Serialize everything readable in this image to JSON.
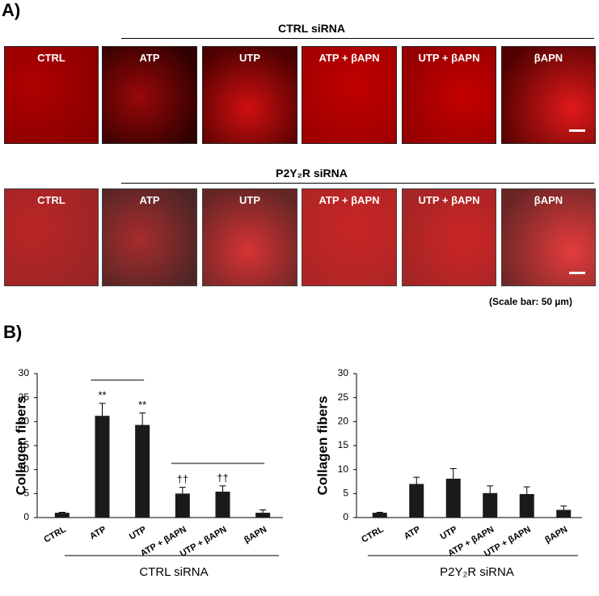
{
  "panel_a": {
    "label": "A)",
    "groups": [
      {
        "title": "CTRL siRNA",
        "images": [
          "CTRL",
          "ATP",
          "UTP",
          "ATP + βAPN",
          "UTP + βAPN",
          "βAPN"
        ]
      },
      {
        "title": "P2Y₂R siRNA",
        "images": [
          "CTRL",
          "ATP",
          "UTP",
          "ATP + βAPN",
          "UTP + βAPN",
          "βAPN"
        ]
      }
    ],
    "scale_note": "(Scale bar: 50 µm)"
  },
  "panel_b": {
    "label": "B)"
  },
  "chart_data": [
    {
      "type": "bar",
      "ylabel": "Collagen fibers",
      "xlabel": "CTRL siRNA",
      "categories": [
        "CTRL",
        "ATP",
        "UTP",
        "ATP + βAPN",
        "UTP + βAPN",
        "βAPN"
      ],
      "values": [
        1,
        21.2,
        19.3,
        5,
        5.4,
        1
      ],
      "errors": [
        0.1,
        2.6,
        2.5,
        1.3,
        1.2,
        0.6
      ],
      "annotations": [
        null,
        "**",
        "**",
        "††",
        "††",
        null
      ],
      "color": "#1a1a1a",
      "ylim": [
        0,
        30
      ],
      "yticks": [
        0,
        5,
        10,
        15,
        20,
        25,
        30
      ]
    },
    {
      "type": "bar",
      "ylabel": "Collagen fibers",
      "xlabel": "P2Y₂R siRNA",
      "categories": [
        "CTRL",
        "ATP",
        "UTP",
        "ATP + βAPN",
        "UTP + βAPN",
        "βAPN"
      ],
      "values": [
        1,
        7,
        8.1,
        5.1,
        4.9,
        1.6
      ],
      "errors": [
        0.1,
        1.4,
        2.1,
        1.5,
        1.5,
        0.8
      ],
      "color": "#1a1a1a",
      "ylim": [
        0,
        30
      ],
      "yticks": [
        0,
        5,
        10,
        15,
        20,
        25,
        30
      ]
    }
  ]
}
